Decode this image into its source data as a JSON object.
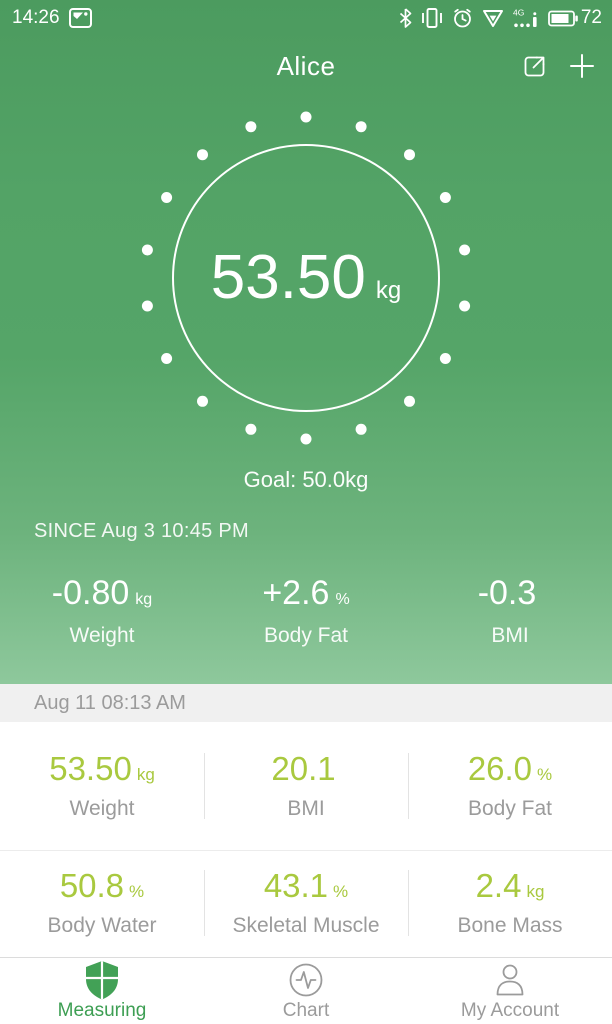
{
  "colors": {
    "header_green": "#4c9b5f",
    "body_green": "#55a568",
    "fade_green": "#8ec89c",
    "accent_green": "#3d9e53",
    "value_green": "#a9c93f",
    "muted_gray": "#9b9b9b",
    "date_bar_bg": "#f0f0f0"
  },
  "status_bar": {
    "time": "14:26",
    "battery_percent": "72",
    "network_label": "4G",
    "icons": [
      "screenshot-icon",
      "bluetooth-icon",
      "vibrate-icon",
      "alarm-icon",
      "vpn-icon",
      "signal-icon",
      "battery-icon"
    ]
  },
  "header": {
    "title": "Alice",
    "actions": [
      "share-icon",
      "add-icon"
    ]
  },
  "dial": {
    "value": "53.50",
    "unit": "kg",
    "dot_count": 18
  },
  "goal_label": "Goal: 50.0kg",
  "since_label": "SINCE Aug 3 10:45 PM",
  "since_stats": [
    {
      "value": "-0.80",
      "unit": "kg",
      "label": "Weight"
    },
    {
      "value": "+2.6",
      "unit": "%",
      "label": "Body Fat"
    },
    {
      "value": "-0.3",
      "unit": "",
      "label": "BMI"
    }
  ],
  "measurement": {
    "timestamp": "Aug 11 08:13 AM",
    "rows": [
      [
        {
          "value": "53.50",
          "unit": "kg",
          "label": "Weight"
        },
        {
          "value": "20.1",
          "unit": "",
          "label": "BMI"
        },
        {
          "value": "26.0",
          "unit": "%",
          "label": "Body Fat"
        }
      ],
      [
        {
          "value": "50.8",
          "unit": "%",
          "label": "Body Water"
        },
        {
          "value": "43.1",
          "unit": "%",
          "label": "Skeletal Muscle"
        },
        {
          "value": "2.4",
          "unit": "kg",
          "label": "Bone Mass"
        }
      ]
    ]
  },
  "tab_bar": {
    "tabs": [
      {
        "label": "Measuring",
        "icon": "shield-icon",
        "active": true
      },
      {
        "label": "Chart",
        "icon": "pulse-icon",
        "active": false
      },
      {
        "label": "My Account",
        "icon": "person-icon",
        "active": false
      }
    ]
  }
}
